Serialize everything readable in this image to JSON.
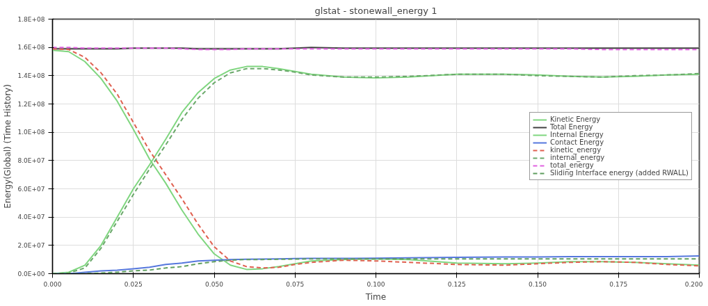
{
  "chart_data": {
    "type": "line",
    "title": "glstat - stonewall_energy 1",
    "xlabel": "Time",
    "ylabel": "Energy(Global) (Time History)",
    "x": [
      0,
      0.005,
      0.01,
      0.015,
      0.02,
      0.025,
      0.03,
      0.035,
      0.04,
      0.045,
      0.05,
      0.055,
      0.06,
      0.065,
      0.07,
      0.075,
      0.08,
      0.09,
      0.1,
      0.11,
      0.125,
      0.14,
      0.15,
      0.16,
      0.17,
      0.18,
      0.19,
      0.2
    ],
    "xlim": [
      0,
      0.2
    ],
    "xticks": [
      {
        "value": 0,
        "label": "0.000"
      },
      {
        "value": 0.025,
        "label": "0.025"
      },
      {
        "value": 0.05,
        "label": "0.050"
      },
      {
        "value": 0.075,
        "label": "0.075"
      },
      {
        "value": 0.1,
        "label": "0.100"
      },
      {
        "value": 0.125,
        "label": "0.125"
      },
      {
        "value": 0.15,
        "label": "0.150"
      },
      {
        "value": 0.175,
        "label": "0.175"
      },
      {
        "value": 0.2,
        "label": "0.200"
      }
    ],
    "ylim": [
      0,
      180000000
    ],
    "yticks": [
      {
        "value": 0,
        "label": "0.0E+00"
      },
      {
        "value": 20000000,
        "label": "2.0E+07"
      },
      {
        "value": 40000000,
        "label": "4.0E+07"
      },
      {
        "value": 60000000,
        "label": "6.0E+07"
      },
      {
        "value": 80000000,
        "label": "8.0E+07"
      },
      {
        "value": 100000000,
        "label": "1.0E+08"
      },
      {
        "value": 120000000,
        "label": "1.2E+08"
      },
      {
        "value": 140000000,
        "label": "1.4E+08"
      },
      {
        "value": 160000000,
        "label": "1.6E+08"
      },
      {
        "value": 180000000,
        "label": "1.8E+08"
      }
    ],
    "grid": true,
    "legend": "right",
    "marker": "none",
    "series": [
      {
        "name": "Kinetic Energy",
        "color": "#7fd67f",
        "line_style": "solid",
        "values": [
          158000000,
          157000000,
          150000000,
          138000000,
          122000000,
          102000000,
          81000000,
          64000000,
          45000000,
          28000000,
          14000000,
          6000000,
          3000000,
          3500000,
          5000000,
          7000000,
          9000000,
          10000000,
          10500000,
          10000000,
          7500000,
          7000000,
          7500000,
          8500000,
          8500000,
          8000000,
          7000000,
          6000000
        ]
      },
      {
        "name": "Total Energy",
        "color": "#404040",
        "line_style": "solid",
        "values": [
          159000000,
          159000000,
          159000000,
          159000000,
          159000000,
          159500000,
          159500000,
          159500000,
          159500000,
          159000000,
          159000000,
          159000000,
          159000000,
          159000000,
          159000000,
          159500000,
          160000000,
          159500000,
          159500000,
          159500000,
          159500000,
          159500000,
          159500000,
          159500000,
          159500000,
          159500000,
          159500000,
          159500000
        ]
      },
      {
        "name": "Internal Energy",
        "color": "#7fd67f",
        "line_style": "solid",
        "values": [
          0,
          1000000,
          6000000,
          20000000,
          40000000,
          60000000,
          77000000,
          95000000,
          114000000,
          128000000,
          138000000,
          144000000,
          146500000,
          146500000,
          145000000,
          143000000,
          141000000,
          139000000,
          138500000,
          139000000,
          141000000,
          141000000,
          140500000,
          139500000,
          139000000,
          139500000,
          140500000,
          141000000
        ]
      },
      {
        "name": "Contact Energy",
        "color": "#5577dd",
        "line_style": "solid",
        "values": [
          0,
          0,
          1000000,
          2000000,
          2500000,
          3500000,
          4500000,
          6500000,
          7500000,
          9000000,
          9500000,
          10000000,
          10200000,
          10300000,
          10500000,
          10700000,
          10800000,
          10800000,
          11000000,
          11200000,
          11500000,
          11800000,
          11800000,
          12000000,
          12000000,
          12000000,
          12000000,
          12500000
        ]
      },
      {
        "name": "kinetic_energy",
        "color": "#e06050",
        "line_style": "dashed",
        "values": [
          159000000,
          158500000,
          153000000,
          142000000,
          127000000,
          107000000,
          87000000,
          70000000,
          53000000,
          35000000,
          19000000,
          9000000,
          5000000,
          4000000,
          4500000,
          6500000,
          8000000,
          9500000,
          9000000,
          8000000,
          6500000,
          6000000,
          7000000,
          8000000,
          8500000,
          8000000,
          6500000,
          5500000
        ]
      },
      {
        "name": "internal_energy",
        "color": "#6aa86a",
        "line_style": "dashed",
        "values": [
          0,
          500000,
          4000000,
          18000000,
          37000000,
          56000000,
          74000000,
          91000000,
          109000000,
          124000000,
          135000000,
          142000000,
          145000000,
          145000000,
          144000000,
          142500000,
          140500000,
          139000000,
          139000000,
          139500000,
          141000000,
          141000000,
          140000000,
          139500000,
          139000000,
          140000000,
          140500000,
          141500000
        ]
      },
      {
        "name": "total_energy",
        "color": "#e060e0",
        "line_style": "dashed",
        "values": [
          160000000,
          160000000,
          159500000,
          159500000,
          159500000,
          159500000,
          159500000,
          159500000,
          159000000,
          158500000,
          158500000,
          158500000,
          159000000,
          159000000,
          159000000,
          159000000,
          159000000,
          159000000,
          159000000,
          159000000,
          159000000,
          159000000,
          159000000,
          159000000,
          158500000,
          158500000,
          158500000,
          158500000
        ]
      },
      {
        "name": "Sliding Interface energy (added RWALL)",
        "color": "#5f9e5f",
        "line_style": "dashed",
        "values": [
          0,
          0,
          0,
          500000,
          1000000,
          2000000,
          2500000,
          4000000,
          5000000,
          7000000,
          8500000,
          9500000,
          10000000,
          10000000,
          10200000,
          10300000,
          10500000,
          10500000,
          10500000,
          10500000,
          10500000,
          10500000,
          10500000,
          10500000,
          10500000,
          10500000,
          10500000,
          10500000
        ]
      }
    ]
  }
}
